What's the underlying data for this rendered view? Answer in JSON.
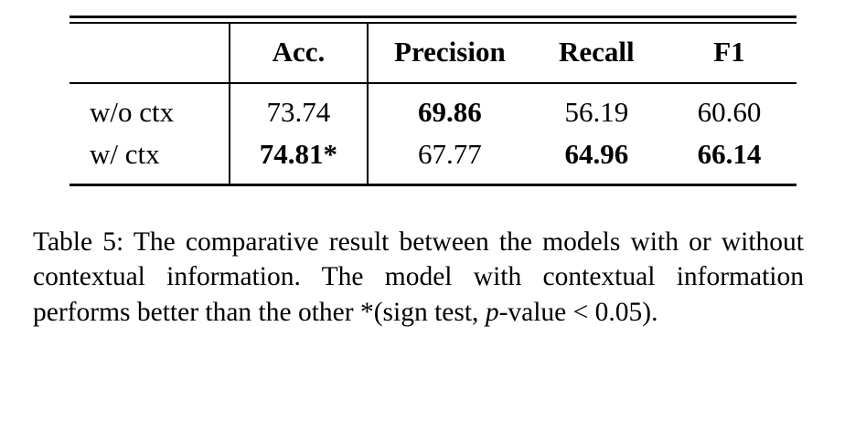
{
  "table": {
    "col_headers": {
      "label": "",
      "acc": "Acc.",
      "precision": "Precision",
      "recall": "Recall",
      "f1": "F1"
    },
    "rows": [
      {
        "label": "w/o ctx",
        "acc": {
          "value": "73.74",
          "bold": false
        },
        "precision": {
          "value": "69.86",
          "bold": true
        },
        "recall": {
          "value": "56.19",
          "bold": false
        },
        "f1": {
          "value": "60.60",
          "bold": false
        }
      },
      {
        "label": "w/ ctx",
        "acc": {
          "value": "74.81*",
          "bold": true
        },
        "precision": {
          "value": "67.77",
          "bold": false
        },
        "recall": {
          "value": "64.96",
          "bold": true
        },
        "f1": {
          "value": "66.14",
          "bold": true
        }
      }
    ]
  },
  "caption": {
    "part1": "Table 5:  The comparative result between the models with or without contextual information.  The model with contextual information performs better than the other *(sign test, ",
    "italic_p": "p",
    "part2": "-value < 0.05)."
  }
}
